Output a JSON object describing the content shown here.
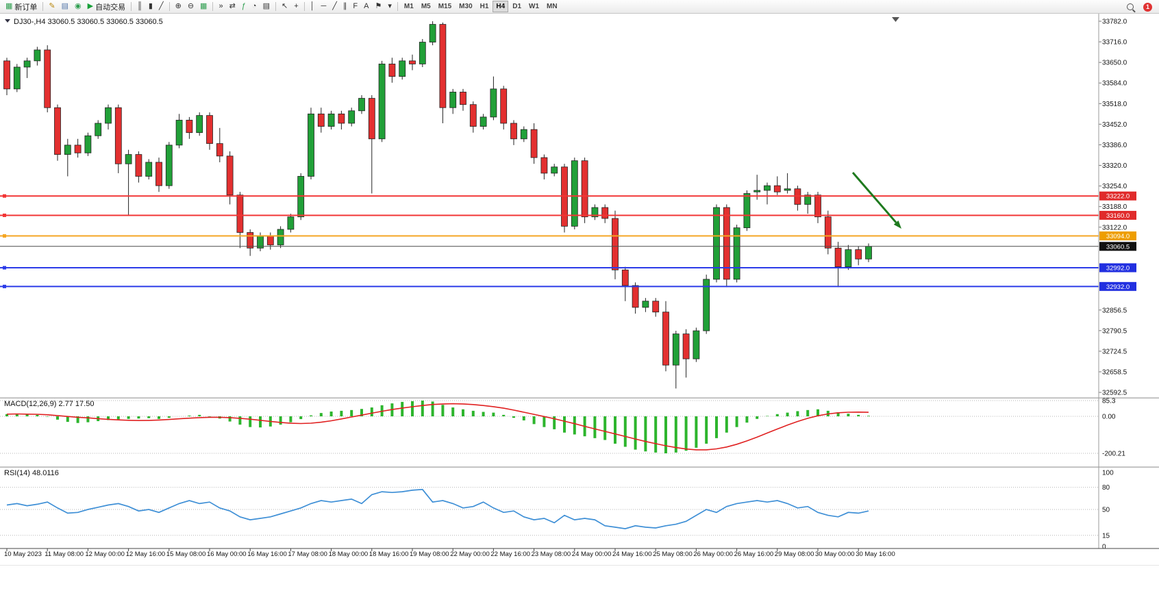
{
  "toolbar": {
    "groups": [
      {
        "name": "new-order-button",
        "glyph": "▦",
        "color": "#2E9E4F",
        "label": "新订单"
      },
      {
        "sep": true
      },
      {
        "name": "metaeditor-button",
        "glyph": "✎",
        "color": "#B8860B"
      },
      {
        "name": "profile-button",
        "glyph": "▤",
        "color": "#5577AA"
      },
      {
        "name": "ea-list-button",
        "glyph": "◉",
        "color": "#2E9E4F"
      },
      {
        "name": "autotrading-button",
        "glyph": "▶",
        "color": "#18A038",
        "label": "自动交易"
      },
      {
        "sep": true
      },
      {
        "name": "bar-chart-button",
        "glyph": "║",
        "color": "#333333"
      },
      {
        "name": "candlestick-chart-button",
        "glyph": "▮",
        "color": "#333333"
      },
      {
        "name": "line-chart-button",
        "glyph": "╱",
        "color": "#333333"
      },
      {
        "sep": true
      },
      {
        "name": "zoom-in-button",
        "glyph": "⊕",
        "color": "#333333"
      },
      {
        "name": "zoom-out-button",
        "glyph": "⊖",
        "color": "#333333"
      },
      {
        "name": "tile-windows-button",
        "glyph": "▦",
        "color": "#2E9E4F"
      },
      {
        "sep": true
      },
      {
        "name": "auto-scroll-button",
        "glyph": "»",
        "color": "#333333"
      },
      {
        "name": "chart-shift-button",
        "glyph": "⇄",
        "color": "#333333"
      },
      {
        "name": "indicators-button",
        "glyph": "ƒ",
        "color": "#2E9E4F"
      },
      {
        "name": "periods-button",
        "glyph": "◔",
        "color": "#333333"
      },
      {
        "name": "templates-button",
        "glyph": "▤",
        "color": "#333333"
      },
      {
        "sep": true
      },
      {
        "name": "cursor-button",
        "glyph": "↖",
        "color": "#333333"
      },
      {
        "name": "crosshair-button",
        "glyph": "+",
        "color": "#333333"
      },
      {
        "sep": true
      },
      {
        "name": "vertical-line-button",
        "glyph": "│",
        "color": "#333333"
      },
      {
        "name": "horizontal-line-button",
        "glyph": "─",
        "color": "#333333"
      },
      {
        "name": "trendline-button",
        "glyph": "╱",
        "color": "#333333"
      },
      {
        "name": "channel-button",
        "glyph": "∥",
        "color": "#333333"
      },
      {
        "name": "fibonacci-button",
        "glyph": "F",
        "color": "#333333"
      },
      {
        "name": "text-button",
        "glyph": "A",
        "color": "#333333"
      },
      {
        "name": "arrow-label-button",
        "glyph": "⚑",
        "color": "#333333"
      },
      {
        "name": "shapes-dropdown-button",
        "glyph": "▾",
        "color": "#333333"
      },
      {
        "sep": true
      }
    ],
    "timeframes": {
      "items": [
        "M1",
        "M5",
        "M15",
        "M30",
        "H1",
        "H4",
        "D1",
        "W1",
        "MN"
      ],
      "active": "H4"
    },
    "notification_count": "1"
  },
  "chart": {
    "header": {
      "collapse_icon": "▼",
      "symbol_period": "DJ30-,H4",
      "ohlc": "33060.5 33060.5 33060.5 33060.5"
    }
  },
  "chart_data": [
    {
      "type": "candlestick",
      "symbol": "DJ30-",
      "timeframe": "H4",
      "up_color": "#21A038",
      "down_color": "#E33030",
      "wick_color": "#222222",
      "ylim": [
        32570,
        33800
      ],
      "ohlc": [
        [
          33655,
          33665,
          33545,
          33565
        ],
        [
          33565,
          33645,
          33555,
          33635
        ],
        [
          33635,
          33665,
          33600,
          33655
        ],
        [
          33655,
          33700,
          33640,
          33690
        ],
        [
          33690,
          33705,
          33490,
          33505
        ],
        [
          33505,
          33515,
          33335,
          33355
        ],
        [
          33355,
          33405,
          33285,
          33385
        ],
        [
          33385,
          33405,
          33345,
          33360
        ],
        [
          33360,
          33425,
          33350,
          33415
        ],
        [
          33415,
          33465,
          33405,
          33455
        ],
        [
          33455,
          33515,
          33435,
          33505
        ],
        [
          33505,
          33515,
          33295,
          33325
        ],
        [
          33325,
          33370,
          33160,
          33355
        ],
        [
          33355,
          33365,
          33265,
          33285
        ],
        [
          33285,
          33340,
          33275,
          33330
        ],
        [
          33330,
          33345,
          33235,
          33255
        ],
        [
          33255,
          33395,
          33245,
          33385
        ],
        [
          33385,
          33485,
          33375,
          33465
        ],
        [
          33465,
          33475,
          33405,
          33425
        ],
        [
          33425,
          33490,
          33415,
          33480
        ],
        [
          33480,
          33490,
          33370,
          33390
        ],
        [
          33390,
          33440,
          33330,
          33350
        ],
        [
          33350,
          33365,
          33195,
          33225
        ],
        [
          33225,
          33235,
          33055,
          33105
        ],
        [
          33105,
          33115,
          33030,
          33055
        ],
        [
          33055,
          33105,
          33045,
          33095
        ],
        [
          33095,
          33105,
          33050,
          33065
        ],
        [
          33065,
          33125,
          33055,
          33115
        ],
        [
          33115,
          33165,
          33105,
          33155
        ],
        [
          33155,
          33295,
          33145,
          33285
        ],
        [
          33285,
          33505,
          33275,
          33485
        ],
        [
          33485,
          33505,
          33425,
          33445
        ],
        [
          33445,
          33495,
          33435,
          33485
        ],
        [
          33485,
          33495,
          33435,
          33455
        ],
        [
          33455,
          33505,
          33445,
          33495
        ],
        [
          33495,
          33545,
          33485,
          33535
        ],
        [
          33535,
          33545,
          33230,
          33405
        ],
        [
          33405,
          33655,
          33395,
          33645
        ],
        [
          33645,
          33665,
          33585,
          33605
        ],
        [
          33605,
          33665,
          33595,
          33655
        ],
        [
          33655,
          33675,
          33625,
          33645
        ],
        [
          33645,
          33725,
          33635,
          33715
        ],
        [
          33715,
          33782,
          33705,
          33772
        ],
        [
          33772,
          33778,
          33455,
          33505
        ],
        [
          33505,
          33565,
          33485,
          33555
        ],
        [
          33555,
          33565,
          33495,
          33515
        ],
        [
          33515,
          33525,
          33425,
          33445
        ],
        [
          33445,
          33485,
          33435,
          33475
        ],
        [
          33475,
          33605,
          33465,
          33565
        ],
        [
          33565,
          33575,
          33435,
          33455
        ],
        [
          33455,
          33465,
          33385,
          33405
        ],
        [
          33405,
          33445,
          33395,
          33435
        ],
        [
          33435,
          33455,
          33325,
          33345
        ],
        [
          33345,
          33355,
          33275,
          33295
        ],
        [
          33295,
          33325,
          33285,
          33315
        ],
        [
          33315,
          33325,
          33105,
          33125
        ],
        [
          33125,
          33345,
          33115,
          33335
        ],
        [
          33335,
          33345,
          33135,
          33155
        ],
        [
          33155,
          33195,
          33145,
          33185
        ],
        [
          33185,
          33195,
          33135,
          33150
        ],
        [
          33150,
          33175,
          32955,
          32985
        ],
        [
          32985,
          32995,
          32885,
          32935
        ],
        [
          32935,
          32945,
          32845,
          32865
        ],
        [
          32865,
          32895,
          32850,
          32885
        ],
        [
          32885,
          32895,
          32835,
          32850
        ],
        [
          32850,
          32885,
          32660,
          32680
        ],
        [
          32680,
          32790,
          32605,
          32780
        ],
        [
          32780,
          32795,
          32640,
          32700
        ],
        [
          32700,
          32800,
          32690,
          32790
        ],
        [
          32790,
          32970,
          32780,
          32955
        ],
        [
          32955,
          33195,
          32945,
          33185
        ],
        [
          33185,
          33195,
          32930,
          32955
        ],
        [
          32955,
          33130,
          32945,
          33120
        ],
        [
          33120,
          33240,
          33110,
          33230
        ],
        [
          33235,
          33290,
          33210,
          33240
        ],
        [
          33240,
          33265,
          33195,
          33255
        ],
        [
          33255,
          33285,
          33225,
          33235
        ],
        [
          33240,
          33295,
          33230,
          33245
        ],
        [
          33245,
          33255,
          33175,
          33195
        ],
        [
          33195,
          33235,
          33165,
          33225
        ],
        [
          33225,
          33235,
          33135,
          33155
        ],
        [
          33155,
          33175,
          33035,
          33055
        ],
        [
          33055,
          33075,
          32930,
          32995
        ],
        [
          32995,
          33065,
          32985,
          33050
        ],
        [
          33050,
          33060,
          33000,
          33020
        ],
        [
          33020,
          33070,
          33010,
          33060.5
        ]
      ],
      "x_labels": [
        "10 May 2023",
        "11 May 08:00",
        "12 May 00:00",
        "12 May 16:00",
        "15 May 08:00",
        "16 May 00:00",
        "16 May 16:00",
        "17 May 08:00",
        "18 May 00:00",
        "18 May 16:00",
        "19 May 08:00",
        "22 May 00:00",
        "22 May 16:00",
        "23 May 08:00",
        "24 May 00:00",
        "24 May 16:00",
        "25 May 08:00",
        "26 May 00:00",
        "26 May 16:00",
        "29 May 08:00",
        "30 May 00:00",
        "30 May 16:00"
      ],
      "x_label_step": 4,
      "price_ticks": [
        "33782.0",
        "33716.0",
        "33650.0",
        "33584.0",
        "33518.0",
        "33452.0",
        "33386.0",
        "33320.0",
        "33254.0",
        "33188.0",
        "33122.0",
        "32856.5",
        "32790.5",
        "32724.5",
        "32658.5",
        "32592.5"
      ],
      "hlines": [
        {
          "label": "33222.0",
          "value": 33222.0,
          "color": "#F23535",
          "badge_color": "#E02B2B",
          "width": 2,
          "handle": true
        },
        {
          "label": "33160.0",
          "value": 33160.0,
          "color": "#F23535",
          "badge_color": "#E02B2B",
          "width": 2,
          "handle": true
        },
        {
          "label": "33094.0",
          "value": 33094.0,
          "color": "#F5A623",
          "badge_color": "#EE9E00",
          "width": 2,
          "handle": true
        },
        {
          "label": "33060.5",
          "value": 33060.5,
          "color": "#4a4a4a",
          "badge_color": "#111111",
          "width": 1,
          "handle": false,
          "role": "current-price"
        },
        {
          "label": "32992.0",
          "value": 32992.0,
          "color": "#2B3BE8",
          "badge_color": "#2230E0",
          "width": 2,
          "handle": true
        },
        {
          "label": "32932.0",
          "value": 32932.0,
          "color": "#2B3BE8",
          "badge_color": "#2230E0",
          "width": 2,
          "handle": true
        }
      ],
      "annotations": [
        {
          "type": "arrow",
          "from": [
            1245,
            232
          ],
          "to": [
            1316,
            314
          ],
          "color": "#1E7A1E"
        }
      ],
      "end_marker": true
    },
    {
      "type": "bar",
      "name": "MACD(12,26,9)",
      "label": "MACD(12,26,9) 2.77 17.50",
      "hist_color": "#2DB52D",
      "signal_color": "#E02020",
      "signal_period": 9,
      "scale_labels": [
        {
          "label": "85.3",
          "value": 85.3
        },
        {
          "label": "0.00",
          "value": 0
        },
        {
          "label": "-200.21",
          "value": -200.21
        }
      ],
      "values": [
        12,
        14,
        10,
        8,
        -2,
        -18,
        -30,
        -36,
        -32,
        -26,
        -20,
        -16,
        -14,
        -12,
        -10,
        -14,
        -8,
        0,
        4,
        8,
        -2,
        -12,
        -28,
        -45,
        -58,
        -60,
        -55,
        -45,
        -32,
        -15,
        5,
        18,
        26,
        30,
        34,
        40,
        48,
        60,
        70,
        78,
        82,
        85,
        80,
        62,
        48,
        38,
        30,
        24,
        20,
        8,
        -8,
        -22,
        -42,
        -58,
        -70,
        -88,
        -98,
        -108,
        -118,
        -128,
        -148,
        -165,
        -180,
        -190,
        -196,
        -200,
        -196,
        -186,
        -170,
        -148,
        -118,
        -88,
        -58,
        -34,
        -14,
        2,
        12,
        20,
        28,
        34,
        38,
        30,
        22,
        14,
        8,
        2.8
      ]
    },
    {
      "type": "line",
      "name": "RSI(14)",
      "label": "RSI(14) 48.0116",
      "line_color": "#3E8FD6",
      "levels": [
        {
          "label": "100",
          "value": 100,
          "dashed": false
        },
        {
          "label": "80",
          "value": 80,
          "dashed": true
        },
        {
          "label": "50",
          "value": 50,
          "dashed": true
        },
        {
          "label": "15",
          "value": 15,
          "dashed": true
        },
        {
          "label": "0",
          "value": 0,
          "dashed": false
        }
      ],
      "values": [
        56,
        58,
        55,
        57,
        60,
        52,
        45,
        46,
        50,
        53,
        56,
        58,
        54,
        48,
        50,
        46,
        52,
        58,
        62,
        58,
        60,
        52,
        48,
        40,
        36,
        38,
        40,
        44,
        48,
        52,
        58,
        62,
        60,
        62,
        64,
        58,
        70,
        74,
        73,
        74,
        76,
        77,
        60,
        62,
        58,
        52,
        54,
        60,
        52,
        46,
        48,
        40,
        36,
        38,
        32,
        42,
        36,
        38,
        36,
        28,
        26,
        24,
        28,
        26,
        25,
        28,
        30,
        34,
        42,
        50,
        46,
        54,
        58,
        60,
        62,
        60,
        62,
        58,
        52,
        54,
        46,
        42,
        40,
        46,
        45,
        48
      ]
    }
  ]
}
